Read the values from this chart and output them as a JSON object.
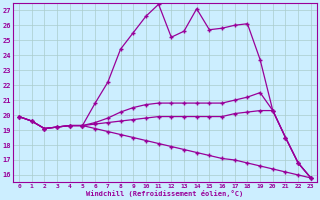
{
  "xlabel": "Windchill (Refroidissement éolien,°C)",
  "background_color": "#cceeff",
  "grid_color": "#aacccc",
  "line_color": "#990099",
  "ylim": [
    15.5,
    27.5
  ],
  "xlim": [
    -0.5,
    23.5
  ],
  "yticks": [
    16,
    17,
    18,
    19,
    20,
    21,
    22,
    23,
    24,
    25,
    26,
    27
  ],
  "xticks": [
    0,
    1,
    2,
    3,
    4,
    5,
    6,
    7,
    8,
    9,
    10,
    11,
    12,
    13,
    14,
    15,
    16,
    17,
    18,
    19,
    20,
    21,
    22,
    23
  ],
  "series": [
    [
      19.9,
      19.6,
      19.1,
      19.2,
      19.3,
      19.3,
      20.8,
      22.2,
      24.4,
      25.5,
      26.6,
      27.4,
      25.2,
      25.6,
      27.1,
      25.7,
      25.8,
      26.0,
      26.1,
      23.7,
      20.3,
      18.5,
      16.8,
      15.8
    ],
    [
      19.9,
      19.6,
      19.1,
      19.2,
      19.3,
      19.3,
      19.5,
      19.8,
      20.2,
      20.5,
      20.7,
      20.8,
      20.8,
      20.8,
      20.8,
      20.8,
      20.8,
      21.0,
      21.2,
      21.5,
      20.3,
      18.5,
      16.8,
      15.8
    ],
    [
      19.9,
      19.6,
      19.1,
      19.2,
      19.3,
      19.3,
      19.4,
      19.5,
      19.6,
      19.7,
      19.8,
      19.9,
      19.9,
      19.9,
      19.9,
      19.9,
      19.9,
      20.1,
      20.2,
      20.3,
      20.3,
      18.5,
      16.8,
      15.8
    ],
    [
      19.9,
      19.6,
      19.1,
      19.2,
      19.3,
      19.3,
      19.1,
      18.9,
      18.7,
      18.5,
      18.3,
      18.1,
      17.9,
      17.7,
      17.5,
      17.3,
      17.1,
      17.0,
      16.8,
      16.6,
      16.4,
      16.2,
      16.0,
      15.8
    ]
  ]
}
